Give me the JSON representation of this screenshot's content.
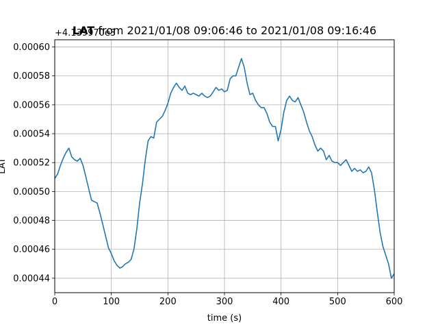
{
  "chart_data": {
    "type": "line",
    "title_var": "LAT",
    "title_rest": " from 2021/01/08 09:06:46 to 2021/01/08 09:16:46",
    "xlabel": "time (s)",
    "ylabel": "LAT",
    "y_offset_text": "+4.139970e3",
    "xlim": [
      0,
      600
    ],
    "ylim": [
      0.00043,
      0.000605
    ],
    "xticks": [
      0,
      100,
      200,
      300,
      400,
      500,
      600
    ],
    "xtick_labels": [
      "0",
      "100",
      "200",
      "300",
      "400",
      "500",
      "600"
    ],
    "yticks": [
      0.00044,
      0.00046,
      0.00048,
      0.0005,
      0.00052,
      0.00054,
      0.00056,
      0.00058,
      0.0006
    ],
    "ytick_labels": [
      "0.00044",
      "0.00046",
      "0.00048",
      "0.00050",
      "0.00052",
      "0.00054",
      "0.00056",
      "0.00058",
      "0.00060"
    ],
    "grid": true,
    "line_color": "#1f77b4",
    "series": [
      {
        "x": [
          0,
          5,
          10,
          15,
          20,
          25,
          30,
          35,
          40,
          45,
          50,
          55,
          60,
          65,
          70,
          75,
          80,
          85,
          90,
          95,
          100,
          105,
          110,
          115,
          120,
          125,
          130,
          135,
          140,
          145,
          150,
          155,
          160,
          165,
          170,
          175,
          180,
          185,
          190,
          195,
          200,
          205,
          210,
          215,
          220,
          225,
          230,
          235,
          240,
          245,
          250,
          255,
          260,
          265,
          270,
          275,
          280,
          285,
          290,
          295,
          300,
          305,
          310,
          315,
          320,
          325,
          330,
          335,
          340,
          345,
          350,
          355,
          360,
          365,
          370,
          375,
          380,
          385,
          390,
          395,
          400,
          405,
          410,
          415,
          420,
          425,
          430,
          435,
          440,
          445,
          450,
          455,
          460,
          465,
          470,
          475,
          480,
          485,
          490,
          495,
          500,
          505,
          510,
          515,
          520,
          525,
          530,
          535,
          540,
          545,
          550,
          555,
          560,
          565,
          570,
          575,
          580,
          585,
          590,
          595,
          600
        ],
        "y": [
          0.000509,
          0.000512,
          0.000518,
          0.000523,
          0.000527,
          0.00053,
          0.000524,
          0.000522,
          0.000521,
          0.000523,
          0.000518,
          0.00051,
          0.000502,
          0.000494,
          0.000493,
          0.000492,
          0.000485,
          0.000477,
          0.000469,
          0.000461,
          0.000457,
          0.000452,
          0.000449,
          0.000447,
          0.000448,
          0.00045,
          0.000451,
          0.000453,
          0.00046,
          0.000474,
          0.000492,
          0.000505,
          0.000522,
          0.000535,
          0.000538,
          0.000537,
          0.000548,
          0.00055,
          0.000552,
          0.000556,
          0.000561,
          0.000568,
          0.000572,
          0.000575,
          0.000572,
          0.00057,
          0.000573,
          0.000568,
          0.000567,
          0.000568,
          0.000567,
          0.000566,
          0.000568,
          0.000566,
          0.000565,
          0.000566,
          0.000569,
          0.000572,
          0.00057,
          0.000571,
          0.000569,
          0.00057,
          0.000578,
          0.00058,
          0.00058,
          0.000586,
          0.000592,
          0.000586,
          0.000575,
          0.000567,
          0.000568,
          0.000563,
          0.00056,
          0.000558,
          0.000558,
          0.000554,
          0.000548,
          0.000545,
          0.000545,
          0.000535,
          0.000543,
          0.000555,
          0.000563,
          0.000566,
          0.000563,
          0.000562,
          0.000565,
          0.00056,
          0.000555,
          0.000548,
          0.000542,
          0.000538,
          0.000532,
          0.000528,
          0.00053,
          0.000528,
          0.000522,
          0.000525,
          0.000521,
          0.00052,
          0.00052,
          0.000518,
          0.00052,
          0.000522,
          0.000518,
          0.000514,
          0.000516,
          0.000514,
          0.000515,
          0.000513,
          0.000514,
          0.000517,
          0.000513,
          0.000501,
          0.000486,
          0.000472,
          0.000462,
          0.000456,
          0.00045,
          0.00044,
          0.000443
        ]
      }
    ]
  }
}
